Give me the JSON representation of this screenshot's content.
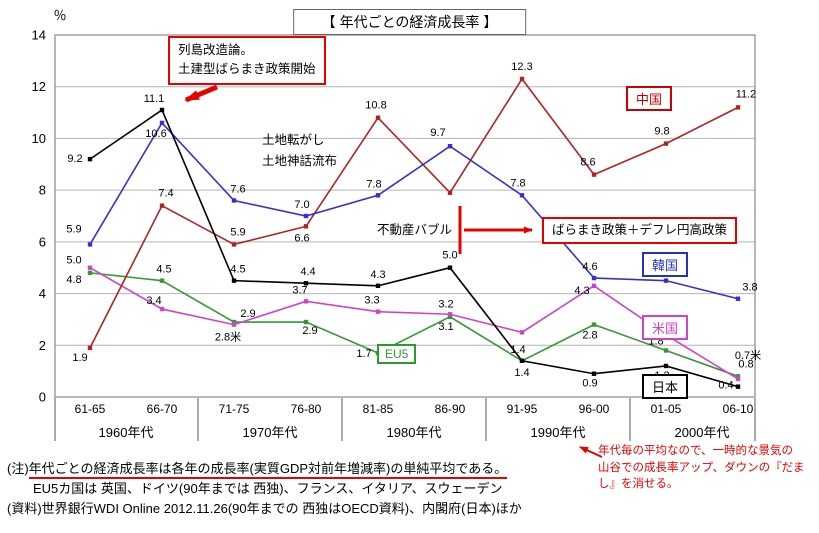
{
  "chart_data": {
    "type": "line",
    "title": "【 年代ごとの経済成長率 】",
    "ylabel": "％",
    "ylim": [
      0,
      14
    ],
    "yticks": [
      0,
      2,
      4,
      6,
      8,
      10,
      12,
      14
    ],
    "grid": true,
    "legend_position": "inline-boxes",
    "categories": [
      "61-65",
      "66-70",
      "71-75",
      "76-80",
      "81-85",
      "86-90",
      "91-95",
      "96-00",
      "01-05",
      "06-10"
    ],
    "decade_labels": [
      "1960年代",
      "1970年代",
      "1980年代",
      "1990年代",
      "2000年代"
    ],
    "series": [
      {
        "name": "EU5",
        "color": "#339933",
        "values": [
          4.8,
          4.5,
          2.9,
          2.9,
          1.7,
          3.1,
          1.4,
          2.8,
          1.8,
          0.8
        ],
        "labels": [
          "4.8",
          "4.5",
          "2.9",
          "2.9",
          "1.7",
          "3.1",
          "1.4",
          "2.8",
          "1.8",
          "0.8"
        ],
        "label_offsets": [
          [
            -16,
            10
          ],
          [
            2,
            -8
          ],
          [
            14,
            -5
          ],
          [
            4,
            12
          ],
          [
            -14,
            4
          ],
          [
            -4,
            13
          ],
          [
            0,
            15
          ],
          [
            -4,
            14
          ],
          [
            -10,
            -6
          ],
          [
            8,
            -9
          ]
        ]
      },
      {
        "name": "米国",
        "color": "#CC44CC",
        "values": [
          5.0,
          3.4,
          2.8,
          3.7,
          3.3,
          3.2,
          2.5,
          4.3,
          2.4,
          0.7
        ],
        "labels": [
          "5.0",
          "3.4",
          "2.8米",
          "3.7",
          "3.3",
          "3.2",
          "",
          "4.3",
          "2.4",
          "0.7米"
        ],
        "label_offsets": [
          [
            -16,
            -4
          ],
          [
            -8,
            -5
          ],
          [
            -6,
            16
          ],
          [
            -6,
            -8
          ],
          [
            -6,
            -8
          ],
          [
            -4,
            -7
          ],
          [
            0,
            0
          ],
          [
            -12,
            8
          ],
          [
            2,
            -8
          ],
          [
            10,
            -20
          ]
        ]
      },
      {
        "name": "中国",
        "color": "#B22222",
        "values": [
          1.9,
          7.4,
          5.9,
          6.6,
          10.8,
          7.9,
          12.3,
          8.6,
          9.8,
          11.2
        ],
        "labels": [
          "1.9",
          "7.4",
          "5.9",
          "6.6",
          "10.8",
          "",
          "12.3",
          "8.6",
          "9.8",
          "11.2"
        ],
        "label_offsets": [
          [
            -10,
            13
          ],
          [
            4,
            -9
          ],
          [
            4,
            -9
          ],
          [
            -4,
            15
          ],
          [
            -2,
            -9
          ],
          [
            0,
            0
          ],
          [
            0,
            -9
          ],
          [
            -6,
            -9
          ],
          [
            -4,
            -9
          ],
          [
            8,
            -10
          ]
        ]
      },
      {
        "name": "韓国",
        "color": "#3333CC",
        "values": [
          5.9,
          10.6,
          7.6,
          7.0,
          7.8,
          9.7,
          7.8,
          4.6,
          4.5,
          3.8
        ],
        "labels": [
          "5.9",
          "10.6",
          "7.6",
          "7.0",
          "7.8",
          "9.7",
          "7.8",
          "4.6",
          "4.5",
          "3.8"
        ],
        "label_offsets": [
          [
            -16,
            -12
          ],
          [
            -6,
            14
          ],
          [
            4,
            -8
          ],
          [
            -4,
            -8
          ],
          [
            -4,
            -8
          ],
          [
            -12,
            -10
          ],
          [
            -4,
            -9
          ],
          [
            -4,
            -8
          ],
          [
            -4,
            -9
          ],
          [
            12,
            -8
          ]
        ]
      },
      {
        "name": "日本",
        "color": "#000000",
        "values": [
          9.2,
          11.1,
          4.5,
          4.4,
          4.3,
          5.0,
          1.4,
          0.9,
          1.2,
          0.4
        ],
        "labels": [
          "9.2",
          "11.1",
          "4.5",
          "4.4",
          "4.3",
          "5.0",
          "1.4",
          "0.9",
          "1.2",
          "0.4"
        ],
        "label_offsets": [
          [
            -15,
            3
          ],
          [
            -8,
            -8
          ],
          [
            4,
            -8
          ],
          [
            2,
            -8
          ],
          [
            0,
            -8
          ],
          [
            0,
            -9
          ],
          [
            -4,
            -8
          ],
          [
            -4,
            13
          ],
          [
            -4,
            13
          ],
          [
            -12,
            2
          ]
        ]
      }
    ]
  },
  "annotations": {
    "retto_line1": "列島改造論。",
    "retto_line2": "土建型ばらまき政策開始",
    "tochi_korogashi": "土地転がし",
    "tochi_shinwa": "土地神話流布",
    "fudosan_bubble": "不動産バブル",
    "baramaki": "ばらまき政策＋デフレ円高政策"
  },
  "series_labels": {
    "china": "中国",
    "korea": "韓国",
    "usa": "米国",
    "eu5": "EU5",
    "japan": "日本"
  },
  "notes": {
    "line1_prefix": "(注)",
    "line1_underlined": "年代ごとの経済成長率は各年の成長率(実質GDP対前年増減率)の単純平均である。",
    "line2": "EU5カ国は 英国、ドイツ(90年までは 西独)、フランス、イタリア、スウェーデン",
    "line3": "(資料)世界銀行WDI Online  2012.11.26(90年までの 西独はOECD資料)、内閣府(日本)ほか"
  },
  "red_note": {
    "lines": [
      "年代毎の平均なので、一時的な景気の",
      "山谷での成長率アップ、ダウンの『だま",
      "し』を消せる。"
    ]
  },
  "colors": {
    "accent_red": "#E60000",
    "grid_gray": "#B4B4B4",
    "china_line": "#B22222",
    "korea_line": "#3333CC",
    "usa_line": "#CC44CC",
    "eu5_line": "#339933",
    "japan_line": "#000000"
  }
}
